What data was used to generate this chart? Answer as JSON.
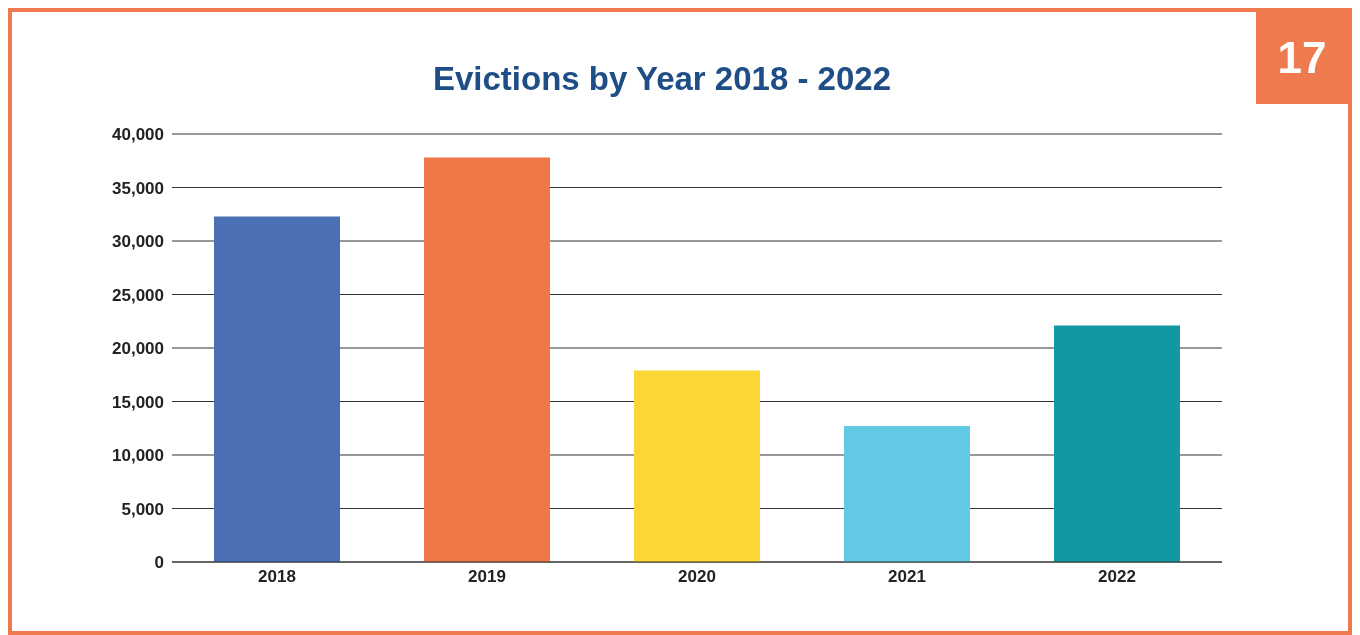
{
  "chart_data": {
    "type": "bar",
    "title": "Evictions by Year 2018 - 2022",
    "categories": [
      "2018",
      "2019",
      "2020",
      "2021",
      "2022"
    ],
    "values": [
      32300,
      37800,
      17900,
      12700,
      22100
    ],
    "colors": [
      "#4a6fb5",
      "#ee7647",
      "#fcd634",
      "#62c9e5",
      "#1199a3"
    ],
    "ylim": [
      0,
      40000
    ],
    "yticks": [
      {
        "value": 0,
        "label": "0"
      },
      {
        "value": 5000,
        "label": "5,000"
      },
      {
        "value": 10000,
        "label": "10,000"
      },
      {
        "value": 15000,
        "label": "15,000"
      },
      {
        "value": 20000,
        "label": "20,000"
      },
      {
        "value": 25000,
        "label": "25,000"
      },
      {
        "value": 30000,
        "label": "30,000"
      },
      {
        "value": 35000,
        "label": "35,000"
      },
      {
        "value": 40000,
        "label": "40,000"
      }
    ],
    "grid": "y",
    "annotations": [
      "17"
    ]
  }
}
